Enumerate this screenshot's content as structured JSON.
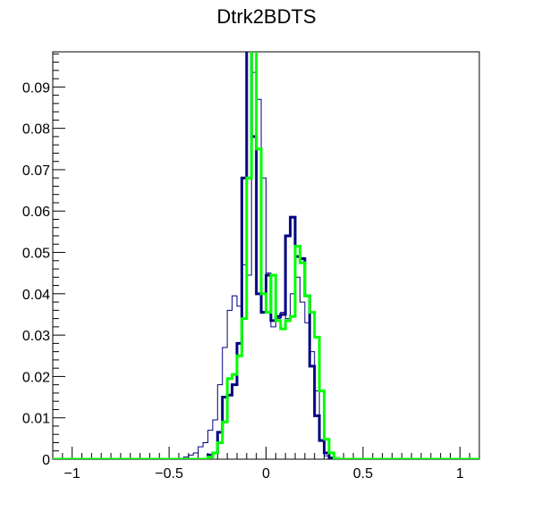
{
  "chart_data": {
    "type": "line",
    "title": "Dtrk2BDTS",
    "xlabel": "",
    "ylabel": "",
    "xlim": [
      -1.1,
      1.1
    ],
    "ylim": [
      0,
      0.0985
    ],
    "x_ticks": [
      -1,
      -0.5,
      0,
      0.5,
      1
    ],
    "x_tick_labels": [
      "−1",
      "−0.5",
      "0",
      "0.5",
      "1"
    ],
    "y_ticks": [
      0,
      0.01,
      0.02,
      0.03,
      0.04,
      0.05,
      0.06,
      0.07,
      0.08,
      0.09
    ],
    "y_tick_labels": [
      "0",
      "0.01",
      "0.02",
      "0.03",
      "0.04",
      "0.05",
      "0.06",
      "0.07",
      "0.08",
      "0.09"
    ],
    "grid": false,
    "legend": "none",
    "bin_edges": [
      -1.1,
      -1.075,
      -1.05,
      -1.025,
      -1.0,
      -0.975,
      -0.95,
      -0.925,
      -0.9,
      -0.875,
      -0.85,
      -0.825,
      -0.8,
      -0.775,
      -0.75,
      -0.725,
      -0.7,
      -0.675,
      -0.65,
      -0.625,
      -0.6,
      -0.575,
      -0.55,
      -0.525,
      -0.5,
      -0.475,
      -0.45,
      -0.425,
      -0.4,
      -0.375,
      -0.35,
      -0.325,
      -0.3,
      -0.275,
      -0.25,
      -0.225,
      -0.2,
      -0.175,
      -0.15,
      -0.125,
      -0.1,
      -0.075,
      -0.05,
      -0.025,
      0.0,
      0.025,
      0.05,
      0.075,
      0.1,
      0.125,
      0.15,
      0.175,
      0.2,
      0.225,
      0.25,
      0.275,
      0.3,
      0.325,
      0.35,
      0.375,
      0.4,
      0.425,
      0.45,
      0.475,
      0.5,
      0.525,
      0.55,
      0.575,
      0.6,
      0.625,
      0.65,
      0.675,
      0.7,
      0.725,
      0.75,
      0.775,
      0.8,
      0.825,
      0.85,
      0.875,
      0.9,
      0.925,
      0.95,
      0.975,
      1.0,
      1.025,
      1.05,
      1.075,
      1.1
    ],
    "series": [
      {
        "color": "#000080",
        "line_width": 1,
        "values": [
          0,
          0,
          0,
          0,
          0,
          0,
          0,
          0,
          0,
          0,
          0,
          0,
          0,
          0,
          0,
          0,
          0,
          0,
          0,
          0,
          0,
          0,
          0,
          0,
          0,
          0,
          0,
          0.0005,
          0.001,
          0.0015,
          0.003,
          0.004,
          0.007,
          0.0095,
          0.018,
          0.027,
          0.036,
          0.0395,
          0.037,
          0.047,
          0.0445,
          0.0935,
          0.087,
          0.068,
          0.045,
          0.032,
          0.034,
          0.0355,
          0.034,
          0.04,
          0.044,
          0.038,
          0.033,
          0.026,
          0.0165,
          0.0045,
          0.0008,
          0.0002,
          0,
          0,
          0,
          0,
          0,
          0,
          0,
          0,
          0,
          0,
          0,
          0,
          0,
          0,
          0,
          0,
          0,
          0,
          0,
          0,
          0,
          0,
          0,
          0,
          0,
          0,
          0,
          0,
          0,
          0
        ]
      },
      {
        "color": "#000080",
        "line_width": 3,
        "values": [
          0,
          0,
          0,
          0,
          0,
          0,
          0,
          0,
          0,
          0,
          0,
          0,
          0,
          0,
          0,
          0,
          0,
          0,
          0,
          0,
          0,
          0,
          0,
          0,
          0,
          0,
          0,
          0,
          0,
          0,
          0,
          0,
          0.001,
          0.0015,
          0.0065,
          0.015,
          0.0155,
          0.018,
          0.028,
          0.068,
          0.11,
          0.078,
          0.04,
          0.0355,
          0.0445,
          0.0335,
          0.0345,
          0.035,
          0.054,
          0.0585,
          0.049,
          0.0485,
          0.0395,
          0.0225,
          0.0105,
          0.0045,
          0.0015,
          0.0003,
          0,
          0,
          0,
          0,
          0,
          0,
          0,
          0,
          0,
          0,
          0,
          0,
          0,
          0,
          0,
          0,
          0,
          0,
          0,
          0,
          0,
          0,
          0,
          0,
          0,
          0,
          0,
          0,
          0,
          0
        ]
      },
      {
        "color": "#00ff00",
        "line_width": 3,
        "values": [
          0,
          0,
          0,
          0,
          0,
          0,
          0,
          0,
          0,
          0,
          0,
          0,
          0,
          0,
          0,
          0,
          0,
          0,
          0,
          0,
          0,
          0,
          0,
          0,
          0,
          0,
          0,
          0,
          0,
          0,
          0,
          0,
          0.0005,
          0.0015,
          0.004,
          0.009,
          0.0195,
          0.0205,
          0.025,
          0.034,
          0.068,
          0.11,
          0.075,
          0.04,
          0.0355,
          0.0445,
          0.0335,
          0.0315,
          0.0335,
          0.0345,
          0.0515,
          0.0475,
          0.0395,
          0.0355,
          0.0295,
          0.0165,
          0.0048,
          0.0015,
          0.0002,
          0,
          0,
          0,
          0,
          0,
          0,
          0,
          0,
          0,
          0,
          0,
          0,
          0,
          0,
          0,
          0,
          0,
          0,
          0,
          0,
          0,
          0,
          0,
          0,
          0,
          0,
          0,
          0,
          0,
          0
        ]
      }
    ]
  }
}
